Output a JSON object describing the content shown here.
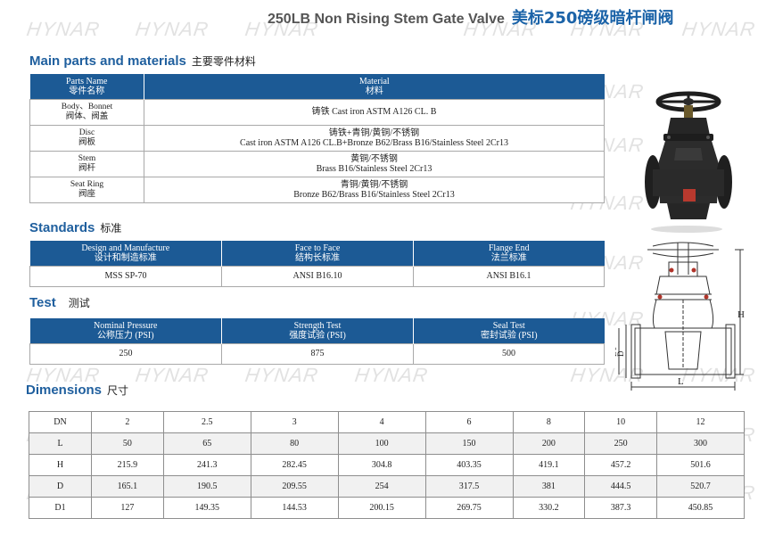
{
  "watermark": "HYNAR",
  "title": {
    "en": "250LB Non Rising Stem Gate Valve",
    "cn": "美标250磅级暗杆闸阀"
  },
  "parts": {
    "heading_en": "Main parts and materials",
    "heading_cn": "主要零件材料",
    "header": {
      "name_en": "Parts Name",
      "name_cn": "零件名称",
      "material_en": "Material",
      "material_cn": "材料"
    },
    "rows": [
      {
        "name_en": "Body、Bonnet",
        "name_cn": "阀体、阀盖",
        "material_line1": "铸铁 Cast iron ASTM A126 CL. B",
        "material_line2": ""
      },
      {
        "name_en": "Disc",
        "name_cn": "阀板",
        "material_line1": "铸铁+青铜/黄铜/不锈钢",
        "material_line2": "Cast iron ASTM A126 CL.B+Bronze B62/Brass B16/Stainless Steel 2Cr13"
      },
      {
        "name_en": "Stem",
        "name_cn": "阀杆",
        "material_line1": "黄铜/不锈钢",
        "material_line2": "Brass B16/Stainless Steel 2Cr13"
      },
      {
        "name_en": "Seat Ring",
        "name_cn": "阀座",
        "material_line1": "青铜/黄铜/不锈钢",
        "material_line2": "Bronze B62/Brass B16/Stainless Steel 2Cr13"
      }
    ]
  },
  "standards": {
    "heading_en": "Standards",
    "heading_cn": "标准",
    "columns": [
      {
        "en": "Design and Manufacture",
        "cn": "设计和制造标准",
        "value": "MSS SP-70"
      },
      {
        "en": "Face to Face",
        "cn": "结构长标准",
        "value": "ANSI  B16.10"
      },
      {
        "en": "Flange End",
        "cn": "法兰标准",
        "value": "ANSI  B16.1"
      }
    ]
  },
  "test": {
    "heading_en": "Test",
    "heading_cn": "测试",
    "columns": [
      {
        "en": "Nominal Pressure",
        "cn": "公称压力 (PSI)",
        "value": "250"
      },
      {
        "en": "Strength Test",
        "cn": "强度试验 (PSI)",
        "value": "875"
      },
      {
        "en": "Seal Test",
        "cn": "密封试验 (PSI)",
        "value": "500"
      }
    ]
  },
  "dimensions": {
    "heading_en": "Dimensions",
    "heading_cn": "尺寸",
    "rows": [
      {
        "label": "DN",
        "values": [
          "2",
          "2.5",
          "3",
          "4",
          "6",
          "8",
          "10",
          "12"
        ]
      },
      {
        "label": "L",
        "values": [
          "50",
          "65",
          "80",
          "100",
          "150",
          "200",
          "250",
          "300"
        ]
      },
      {
        "label": "H",
        "values": [
          "215.9",
          "241.3",
          "282.45",
          "304.8",
          "403.35",
          "419.1",
          "457.2",
          "501.6"
        ]
      },
      {
        "label": "D",
        "values": [
          "165.1",
          "190.5",
          "209.55",
          "254",
          "317.5",
          "381",
          "444.5",
          "520.7"
        ]
      },
      {
        "label": "D1",
        "values": [
          "127",
          "149.35",
          "144.53",
          "200.15",
          "269.75",
          "330.2",
          "387.3",
          "450.85"
        ]
      }
    ]
  },
  "drawing_labels": {
    "h": "H",
    "l": "L",
    "d": "D",
    "d1": "D1"
  }
}
